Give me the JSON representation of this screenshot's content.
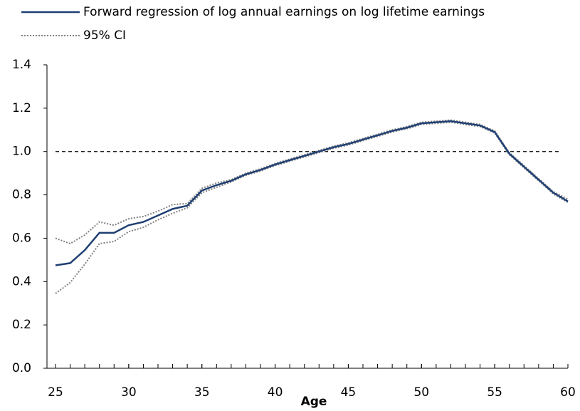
{
  "chart_data": {
    "type": "line",
    "xlabel": "Age",
    "x": [
      25,
      26,
      27,
      28,
      29,
      30,
      31,
      32,
      33,
      34,
      35,
      36,
      37,
      38,
      39,
      40,
      41,
      42,
      43,
      44,
      45,
      46,
      47,
      48,
      49,
      50,
      51,
      52,
      53,
      54,
      55,
      56,
      57,
      58,
      59,
      60
    ],
    "series": [
      {
        "name": "Forward regression of log annual earnings on log lifetime earnings",
        "color": "#1f3f73",
        "style": "solid",
        "values": [
          0.475,
          0.485,
          0.545,
          0.625,
          0.625,
          0.66,
          0.675,
          0.705,
          0.735,
          0.75,
          0.82,
          0.845,
          0.865,
          0.895,
          0.915,
          0.94,
          0.96,
          0.98,
          1.0,
          1.02,
          1.035,
          1.055,
          1.075,
          1.095,
          1.11,
          1.13,
          1.135,
          1.14,
          1.13,
          1.12,
          1.09,
          0.99,
          0.93,
          0.87,
          0.81,
          0.77
        ]
      }
    ],
    "ci": {
      "name": "95% CI",
      "color": "#808080",
      "style": "dotted",
      "upper": [
        0.6,
        0.575,
        0.615,
        0.675,
        0.66,
        0.69,
        0.7,
        0.725,
        0.755,
        0.76,
        0.83,
        0.855,
        0.87,
        0.9,
        0.92,
        0.945,
        0.965,
        0.985,
        1.005,
        1.025,
        1.04,
        1.06,
        1.08,
        1.1,
        1.115,
        1.135,
        1.14,
        1.145,
        1.135,
        1.125,
        1.095,
        0.995,
        0.935,
        0.875,
        0.815,
        0.78
      ],
      "lower": [
        0.345,
        0.395,
        0.48,
        0.575,
        0.585,
        0.63,
        0.65,
        0.685,
        0.715,
        0.74,
        0.81,
        0.835,
        0.86,
        0.89,
        0.91,
        0.935,
        0.955,
        0.975,
        0.995,
        1.015,
        1.03,
        1.05,
        1.07,
        1.09,
        1.105,
        1.125,
        1.13,
        1.135,
        1.125,
        1.115,
        1.085,
        0.985,
        0.925,
        0.865,
        0.805,
        0.765
      ]
    },
    "reference_line": 1.0,
    "xlim": [
      25,
      60
    ],
    "xticks": [
      25,
      30,
      35,
      40,
      45,
      50,
      55,
      60
    ],
    "ylim": [
      0,
      1.4
    ],
    "yticks": [
      {
        "value": 0,
        "label": "0.0"
      },
      {
        "value": 0.2,
        "label": "0.2"
      },
      {
        "value": 0.4,
        "label": "0.4"
      },
      {
        "value": 0.6,
        "label": "0.6"
      },
      {
        "value": 0.8,
        "label": "0.8"
      },
      {
        "value": 1.0,
        "label": "1.0"
      },
      {
        "value": 1.2,
        "label": "1.2"
      },
      {
        "value": 1.4,
        "label": "1.4"
      }
    ],
    "grid": false
  }
}
